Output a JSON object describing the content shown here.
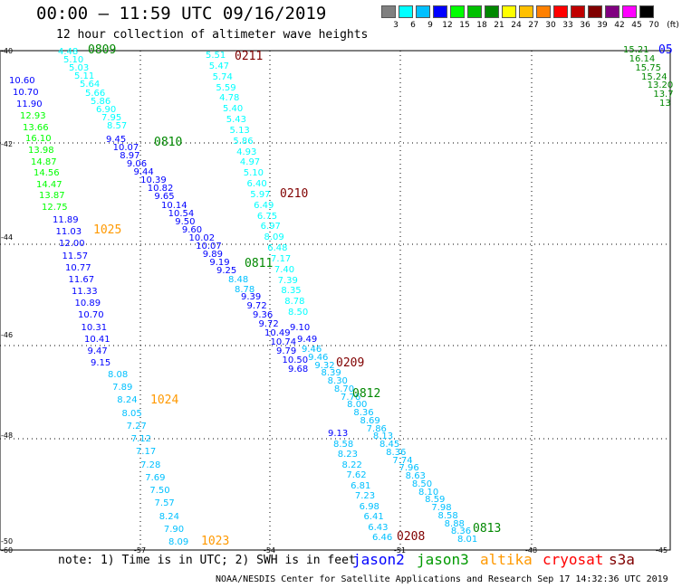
{
  "header": {
    "title": "00:00 – 11:59 UTC 09/16/2019",
    "subtitle": "12 hour collection of altimeter wave heights"
  },
  "colorbar": {
    "unit": "(ft)",
    "swatches": [
      "#808080",
      "#00ffff",
      "#00c0ff",
      "#0000ff",
      "#00ff00",
      "#00c000",
      "#008800",
      "#ffff00",
      "#ffc000",
      "#ff8000",
      "#ff0000",
      "#c00000",
      "#800000",
      "#800080",
      "#ff00ff",
      "#000000"
    ],
    "labels": [
      "3",
      "6",
      "9",
      "12",
      "15",
      "18",
      "21",
      "24",
      "27",
      "30",
      "33",
      "36",
      "39",
      "42",
      "45",
      "70"
    ]
  },
  "axes": {
    "lat_labels": [
      "-40",
      "-42",
      "-44",
      "-46",
      "-48",
      "-50"
    ],
    "lon_labels": [
      "-60",
      "-57",
      "-54",
      "-51",
      "-48",
      "-45"
    ]
  },
  "tracks": [
    {
      "color": "#00ffff",
      "values": [
        "4.48",
        "5.10",
        "5.03",
        "5.11",
        "5.64",
        "5.66",
        "5.86",
        "6.90",
        "7.95",
        "8.57"
      ]
    },
    {
      "color": "#0000ff",
      "values": [
        "10.60",
        "10.70",
        "11.90"
      ]
    },
    {
      "color": "#00ff00",
      "values": [
        "12.93",
        "13.66",
        "16.10",
        "13.98",
        "14.87",
        "14.56",
        "14.47",
        "13.87",
        "12.75"
      ]
    },
    {
      "color": "#0000ff",
      "values": [
        "11.89",
        "11.03",
        "12.00",
        "11.57",
        "10.77",
        "11.67",
        "11.33",
        "10.89",
        "10.70",
        "10.31",
        "10.41",
        "9.47",
        "9.15"
      ]
    },
    {
      "color": "#00c0ff",
      "values": [
        "8.08",
        "7.89",
        "8.24",
        "8.05",
        "7.27",
        "7.12",
        "7.17",
        "7.28",
        "7.69",
        "7.50",
        "7.57",
        "8.24",
        "7.90",
        "8.09"
      ]
    },
    {
      "color": "#0000ff",
      "values": [
        "9.45",
        "10.07",
        "8.97",
        "9.06",
        "9.44",
        "10.39",
        "10.82",
        "9.65",
        "10.14",
        "10.54",
        "9.50",
        "9.60",
        "10.02",
        "10.07",
        "9.89",
        "9.19",
        "9.25"
      ]
    },
    {
      "color": "#00c0ff",
      "values": [
        "8.48",
        "8.78"
      ]
    },
    {
      "color": "#0000ff",
      "values": [
        "9.39",
        "9.72",
        "9.36",
        "9.72",
        "10.49",
        "10.74",
        "9.79",
        "10.50",
        "9.68"
      ]
    },
    {
      "color": "#00ffff",
      "values": [
        "5.51",
        "5.47",
        "5.74",
        "5.59",
        "4.78",
        "5.40",
        "5.43",
        "5.13",
        "5.86",
        "4.93",
        "4.97",
        "5.10",
        "6.40",
        "5.97",
        "6.49",
        "6.75",
        "6.97",
        "8.09",
        "6.48",
        "7.17",
        "7.40",
        "7.39",
        "8.35",
        "8.78",
        "8.50"
      ]
    },
    {
      "color": "#0000ff",
      "values": [
        "9.10",
        "9.49"
      ]
    },
    {
      "color": "#00c0ff",
      "values": [
        "9.46",
        "9.46",
        "9.32",
        "8.39",
        "8.30",
        "8.70",
        "7.76",
        "8.00",
        "8.36",
        "8.69",
        "7.86",
        "8.13",
        "8.45",
        "8.36",
        "7.74",
        "7.96",
        "8.63",
        "8.50",
        "8.10",
        "8.59",
        "7.98",
        "8.58",
        "8.88",
        "8.36",
        "8.01"
      ]
    },
    {
      "color": "#0000ff",
      "values": [
        "9.13"
      ]
    },
    {
      "color": "#00c0ff",
      "values": [
        "8.58",
        "8.23",
        "8.22",
        "7.62",
        "6.81",
        "7.23",
        "6.98",
        "6.41",
        "6.43",
        "6.46"
      ]
    },
    {
      "color": "#008800",
      "values": [
        "15.21",
        "16.14",
        "15.75",
        "15.24",
        "13.20",
        "13.7",
        "13"
      ]
    }
  ],
  "date_labels": [
    {
      "text": "0809",
      "color": "#008800"
    },
    {
      "text": "0211",
      "color": "#800000"
    },
    {
      "text": "05",
      "color": "#0000ff"
    },
    {
      "text": "0810",
      "color": "#008800"
    },
    {
      "text": "0210",
      "color": "#800000"
    },
    {
      "text": "1025",
      "color": "#ff9900"
    },
    {
      "text": "0811",
      "color": "#008800"
    },
    {
      "text": "0209",
      "color": "#800000"
    },
    {
      "text": "0812",
      "color": "#008800"
    },
    {
      "text": "1024",
      "color": "#ff9900"
    },
    {
      "text": "0813",
      "color": "#008800"
    },
    {
      "text": "0208",
      "color": "#800000"
    },
    {
      "text": "1023",
      "color": "#ff9900"
    }
  ],
  "note": "note: 1) Time is in UTC; 2) SWH is in feet",
  "legend": [
    {
      "name": "jason2",
      "color": "#0000ff"
    },
    {
      "name": "jason3",
      "color": "#009900"
    },
    {
      "name": "altika",
      "color": "#ff9900"
    },
    {
      "name": "cryosat",
      "color": "#ff0000"
    },
    {
      "name": "s3a",
      "color": "#800000"
    }
  ],
  "credit": "NOAA/NESDIS Center for Satellite Applications and Research   Sep 17 14:32:36 UTC 2019"
}
